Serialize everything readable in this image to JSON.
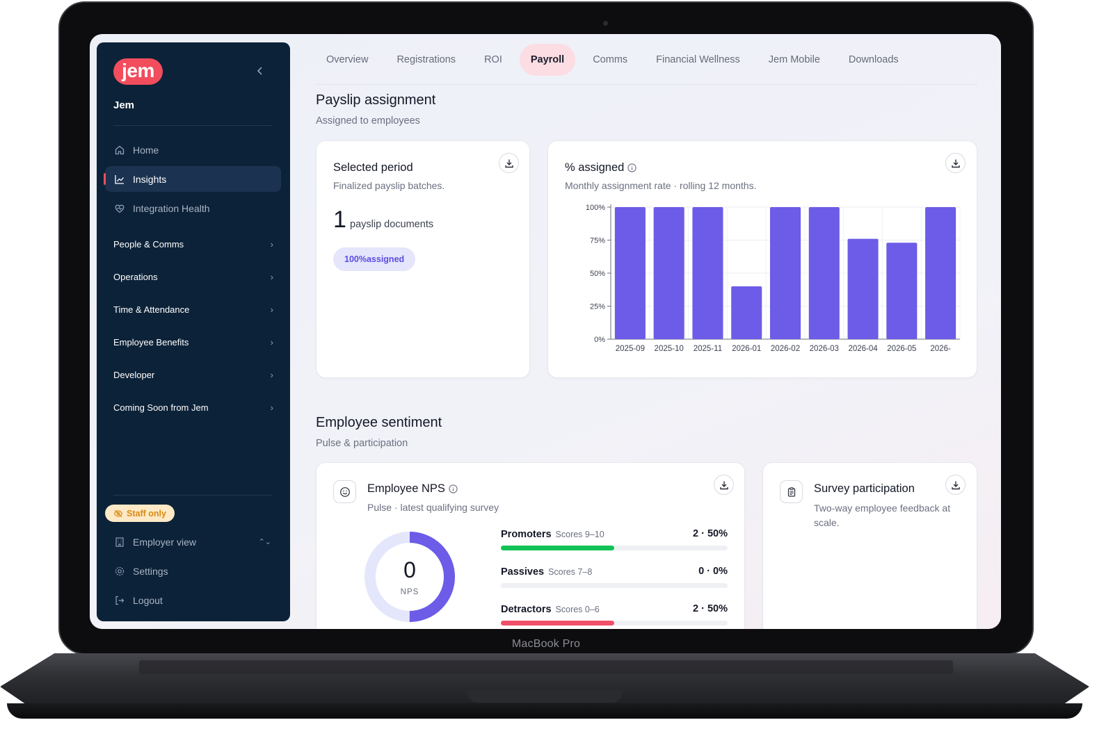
{
  "device": {
    "label": "MacBook Pro"
  },
  "sidebar": {
    "logo_text": "jem",
    "org_name": "Jem",
    "primary_items": [
      {
        "label": "Home",
        "icon": "home-icon"
      },
      {
        "label": "Insights",
        "icon": "chart-line-icon",
        "active": true
      },
      {
        "label": "Integration Health",
        "icon": "heart-pulse-icon"
      }
    ],
    "groups": [
      {
        "label": "People & Comms"
      },
      {
        "label": "Operations"
      },
      {
        "label": "Time & Attendance"
      },
      {
        "label": "Employee Benefits"
      },
      {
        "label": "Developer"
      },
      {
        "label": "Coming Soon from Jem"
      }
    ],
    "staff_badge": "Staff only",
    "footer_items": [
      {
        "label": "Employer view",
        "icon": "building-icon"
      },
      {
        "label": "Settings",
        "icon": "gear-icon"
      },
      {
        "label": "Logout",
        "icon": "logout-icon"
      }
    ]
  },
  "tabs": [
    {
      "label": "Overview"
    },
    {
      "label": "Registrations"
    },
    {
      "label": "ROI"
    },
    {
      "label": "Payroll",
      "active": true
    },
    {
      "label": "Comms"
    },
    {
      "label": "Financial Wellness"
    },
    {
      "label": "Jem Mobile"
    },
    {
      "label": "Downloads"
    }
  ],
  "payslip": {
    "title": "Payslip assignment",
    "subtitle": "Assigned to employees",
    "selected_period": {
      "title": "Selected period",
      "subtitle": "Finalized payslip batches.",
      "count": "1",
      "unit": "payslip documents",
      "pill": "100%assigned"
    },
    "assigned_card": {
      "title": "% assigned",
      "subtitle": "Monthly assignment rate · rolling 12 months."
    }
  },
  "chart_data": {
    "type": "bar",
    "categories": [
      "2025-09",
      "2025-10",
      "2025-11",
      "2026-01",
      "2026-02",
      "2026-03",
      "2026-04",
      "2026-05",
      "2026-"
    ],
    "values": [
      100,
      100,
      100,
      40,
      100,
      100,
      76,
      73,
      100
    ],
    "ylim": [
      0,
      100
    ],
    "yticks": [
      "0%",
      "25%",
      "50%",
      "75%",
      "100%"
    ],
    "ytick_values": [
      0,
      25,
      50,
      75,
      100
    ],
    "grid": true,
    "bar_color": "#6c5ce7"
  },
  "sentiment": {
    "title": "Employee sentiment",
    "subtitle": "Pulse & participation",
    "nps": {
      "title": "Employee NPS",
      "subtitle": "Pulse · latest qualifying survey",
      "score": "0",
      "score_label": "NPS",
      "score_fraction_filled": 0.5,
      "rows": [
        {
          "name": "Promoters",
          "range": "Scores 9–10",
          "value": "2 · 50%",
          "fraction": 0.5,
          "color": "#12c256"
        },
        {
          "name": "Passives",
          "range": "Scores 7–8",
          "value": "0 · 0%",
          "fraction": 0,
          "color": "#9aa0ad"
        },
        {
          "name": "Detractors",
          "range": "Scores 0–6",
          "value": "2 · 50%",
          "fraction": 0.5,
          "color": "#f0506a"
        }
      ]
    },
    "survey": {
      "title": "Survey participation",
      "subtitle": "Two-way employee feedback at scale."
    }
  },
  "colors": {
    "accent": "#f24d5d",
    "sidebar_bg": "#0c2238",
    "bar": "#6c5ce7",
    "donut": "#6c5ce7"
  }
}
